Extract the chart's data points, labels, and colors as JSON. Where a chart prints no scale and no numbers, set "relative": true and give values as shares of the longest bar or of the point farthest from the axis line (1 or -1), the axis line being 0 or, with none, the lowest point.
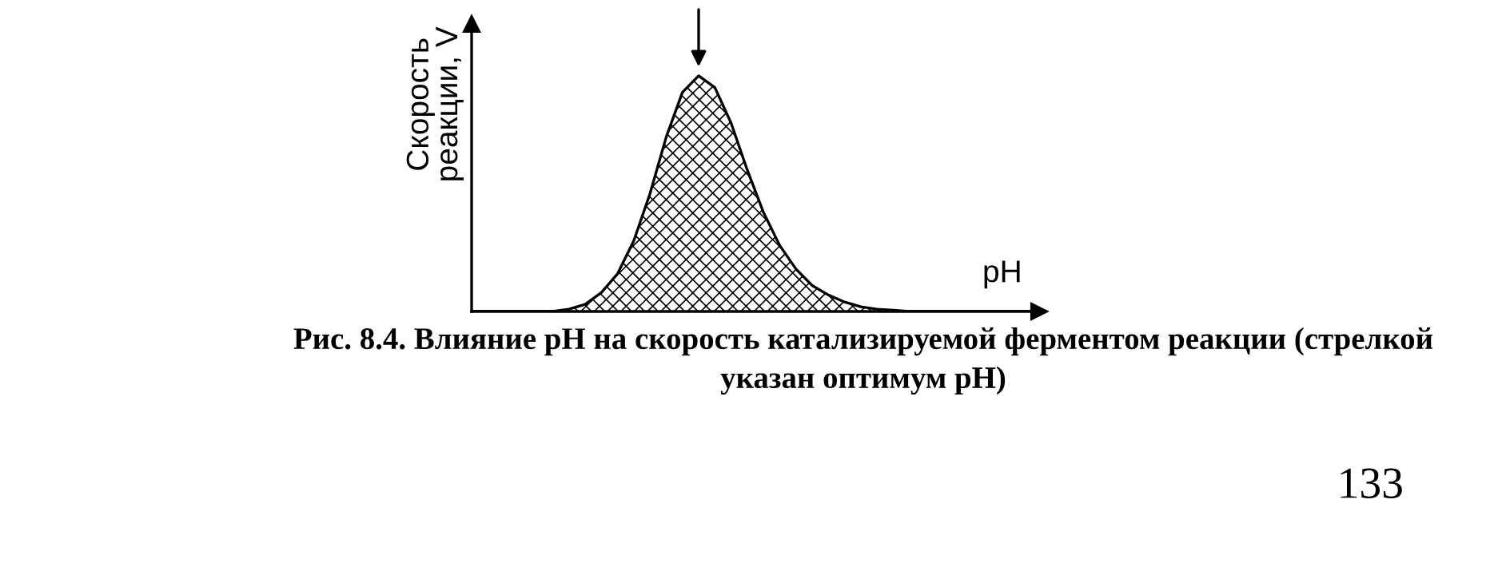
{
  "chart_data": {
    "type": "area",
    "relative": true,
    "ylabel": "Скорость\nреакции, V",
    "xlabel": "pH",
    "color": "#000000",
    "categories": [
      null,
      null,
      null,
      null,
      null,
      null,
      null,
      null,
      null,
      null,
      null,
      null,
      null,
      null,
      null,
      null,
      null,
      null,
      null,
      null,
      null,
      null,
      null,
      null,
      null,
      null,
      null,
      null,
      null,
      null,
      null,
      null,
      null,
      null,
      null,
      null
    ],
    "values": [
      0,
      0,
      0,
      0,
      0,
      0,
      0.01,
      0.03,
      0.08,
      0.16,
      0.3,
      0.5,
      0.74,
      0.93,
      1,
      0.95,
      0.8,
      0.6,
      0.42,
      0.28,
      0.18,
      0.11,
      0.07,
      0.04,
      0.02,
      0.01,
      0.005,
      0,
      0,
      0,
      0,
      0,
      0,
      0,
      0,
      0
    ],
    "annotations": [
      "Рис. 8.4. Влияние pH на скорость катализируемой ферментом реакции (стрелкой\nуказан оптимум pH)",
      "133"
    ]
  }
}
